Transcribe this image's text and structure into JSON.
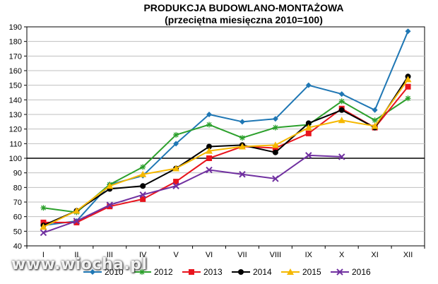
{
  "watermark": "www.wiocha.pl",
  "chart_data": {
    "type": "line",
    "title": "PRODUKCJA BUDOWLANO-MONTAŻOWA",
    "subtitle": "(przeciętna miesięczna 2010=100)",
    "categories": [
      "I",
      "II",
      "III",
      "IV",
      "V",
      "VI",
      "VII",
      "VIII",
      "IX",
      "X",
      "XI",
      "XII"
    ],
    "ylim": [
      40,
      190
    ],
    "yticks": [
      40,
      50,
      60,
      70,
      80,
      90,
      100,
      110,
      120,
      130,
      140,
      150,
      160,
      170,
      180,
      190
    ],
    "reference_line": 100,
    "grid": true,
    "legend_position": "bottom",
    "series": [
      {
        "name": "2010",
        "color": "#1f77b4",
        "marker": "diamond",
        "values": [
          54,
          57,
          82,
          88,
          110,
          130,
          125,
          127,
          150,
          144,
          133,
          187
        ]
      },
      {
        "name": "2012",
        "color": "#2ca02c",
        "marker": "star",
        "values": [
          66,
          63,
          82,
          94,
          116,
          123,
          114,
          121,
          123,
          139,
          126,
          141
        ]
      },
      {
        "name": "2013",
        "color": "#e8141d",
        "marker": "square",
        "values": [
          56,
          56,
          67,
          72,
          84,
          100,
          108,
          107,
          117,
          134,
          121,
          149
        ]
      },
      {
        "name": "2014",
        "color": "#000000",
        "marker": "circle",
        "values": [
          54,
          64,
          79,
          81,
          93,
          108,
          109,
          104,
          124,
          133,
          121,
          156
        ]
      },
      {
        "name": "2015",
        "color": "#f5b800",
        "marker": "triangle",
        "values": [
          53,
          64,
          81,
          89,
          93,
          105,
          108,
          109,
          121,
          126,
          122,
          154
        ]
      },
      {
        "name": "2016",
        "color": "#7030a0",
        "marker": "x",
        "values": [
          49,
          57,
          68,
          75,
          81,
          92,
          89,
          86,
          102,
          101,
          null,
          null
        ]
      }
    ]
  }
}
